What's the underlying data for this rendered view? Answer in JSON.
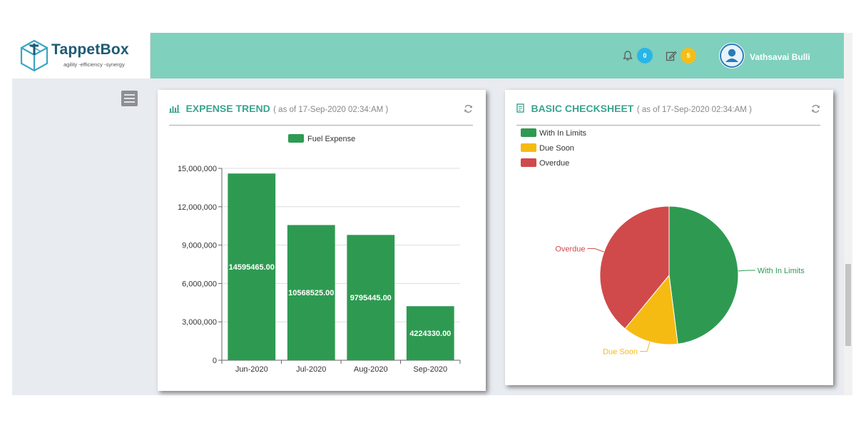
{
  "brand": {
    "name": "TappetBox",
    "tagline": "agility -efficiency -synergy"
  },
  "header": {
    "notifications": {
      "icon": "bell-icon",
      "count": "0",
      "badge_color": "#29b6e6"
    },
    "tasks": {
      "icon": "edit-icon",
      "count": "5",
      "badge_color": "#f3be1c"
    },
    "user": {
      "name": "Vathsavai Bulli",
      "avatar_icon": "user-avatar-icon"
    },
    "bar_color": "#7fd0bd"
  },
  "sidebar": {
    "menu_icon": "hamburger-menu-icon"
  },
  "panels": {
    "expense": {
      "title": "EXPENSE TREND",
      "as_of": "( as of 17-Sep-2020 02:34:AM )",
      "icon": "bar-chart-icon",
      "refresh_icon": "refresh-icon"
    },
    "checksheet": {
      "title": "BASIC CHECKSHEET",
      "as_of": "( as of 17-Sep-2020 02:34:AM )",
      "icon": "checklist-icon",
      "refresh_icon": "refresh-icon"
    }
  },
  "chart_data": [
    {
      "type": "bar",
      "categories": [
        "Jun-2020",
        "Jul-2020",
        "Aug-2020",
        "Sep-2020"
      ],
      "series": [
        {
          "name": "Fuel Expense",
          "values": [
            14595465.0,
            10568525.0,
            9795445.0,
            4224330.0
          ],
          "color": "#2e9a51"
        }
      ],
      "data_labels": [
        "14595465.00",
        "10568525.00",
        "9795445.00",
        "4224330.00"
      ],
      "yticks": [
        "0",
        "3,000,000",
        "6,000,000",
        "9,000,000",
        "12,000,000",
        "15,000,000"
      ],
      "ylim": [
        0,
        15000000
      ],
      "legend": "top-center",
      "grid": true
    },
    {
      "type": "pie",
      "categories": [
        "With In Limits",
        "Due Soon",
        "Overdue"
      ],
      "values": [
        48,
        13,
        39
      ],
      "colors": [
        "#2e9a51",
        "#f6bb13",
        "#d04a4b"
      ],
      "legend": "top-left"
    }
  ]
}
